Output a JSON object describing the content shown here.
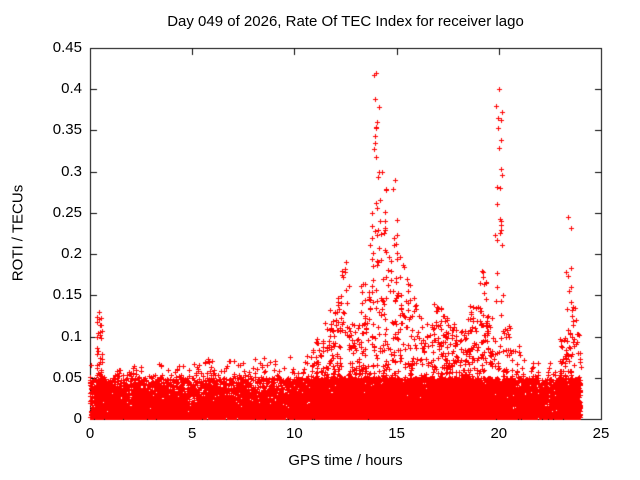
{
  "chart_data": {
    "type": "scatter",
    "title": "Day 049 of 2026, Rate Of TEC Index for receiver lago",
    "xlabel": "GPS time / hours",
    "ylabel": "ROTI / TECUs",
    "xlim": [
      0,
      25
    ],
    "ylim": [
      0,
      0.45
    ],
    "xticks": [
      0,
      5,
      10,
      15,
      20,
      25
    ],
    "xtick_labels": [
      "0",
      "5",
      "10",
      "15",
      "20",
      "25"
    ],
    "yticks": [
      0,
      0.05,
      0.1,
      0.15,
      0.2,
      0.25,
      0.3,
      0.35,
      0.4,
      0.45
    ],
    "ytick_labels": [
      "0",
      "0.05",
      "0.1",
      "0.15",
      "0.2",
      "0.25",
      "0.3",
      "0.35",
      "0.4",
      "0.45"
    ],
    "grid": false,
    "legend": "none",
    "series": [
      {
        "name": "ROTI",
        "marker": "plus",
        "color": "#ff0000"
      }
    ],
    "data_span_hours": [
      0,
      24
    ],
    "baseline_band_max": 0.05,
    "notable_peaks": [
      {
        "t": 14.0,
        "roti": 0.42
      },
      {
        "t": 20.0,
        "roti": 0.4
      },
      {
        "t": 14.3,
        "roti": 0.3
      },
      {
        "t": 14.9,
        "roti": 0.29
      },
      {
        "t": 13.8,
        "roti": 0.25
      },
      {
        "t": 23.4,
        "roti": 0.245
      },
      {
        "t": 12.5,
        "roti": 0.19
      },
      {
        "t": 19.2,
        "roti": 0.18
      },
      {
        "t": 15.5,
        "roti": 0.17
      },
      {
        "t": 0.45,
        "roti": 0.13
      }
    ],
    "envelope": [
      [
        0.0,
        0.3,
        0.065
      ],
      [
        0.3,
        0.6,
        0.13
      ],
      [
        0.6,
        1.0,
        0.055
      ],
      [
        1.0,
        1.5,
        0.06
      ],
      [
        1.5,
        2.0,
        0.06
      ],
      [
        2.0,
        2.5,
        0.065
      ],
      [
        2.5,
        3.0,
        0.06
      ],
      [
        3.0,
        3.5,
        0.07
      ],
      [
        3.5,
        4.0,
        0.06
      ],
      [
        4.0,
        4.5,
        0.065
      ],
      [
        4.5,
        5.0,
        0.06
      ],
      [
        5.0,
        5.5,
        0.07
      ],
      [
        5.5,
        6.0,
        0.075
      ],
      [
        6.0,
        6.5,
        0.065
      ],
      [
        6.5,
        7.0,
        0.08
      ],
      [
        7.0,
        7.5,
        0.07
      ],
      [
        7.5,
        8.0,
        0.065
      ],
      [
        8.0,
        8.5,
        0.075
      ],
      [
        8.5,
        9.0,
        0.07
      ],
      [
        9.0,
        9.5,
        0.065
      ],
      [
        9.5,
        10.0,
        0.08
      ],
      [
        10.0,
        10.5,
        0.07
      ],
      [
        10.5,
        11.0,
        0.085
      ],
      [
        11.0,
        11.5,
        0.1
      ],
      [
        11.5,
        12.0,
        0.135
      ],
      [
        12.0,
        12.3,
        0.15
      ],
      [
        12.3,
        12.7,
        0.19
      ],
      [
        12.7,
        13.2,
        0.12
      ],
      [
        13.2,
        13.6,
        0.17
      ],
      [
        13.6,
        13.9,
        0.25
      ],
      [
        13.9,
        14.2,
        0.42
      ],
      [
        14.2,
        14.5,
        0.3
      ],
      [
        14.5,
        14.8,
        0.22
      ],
      [
        14.8,
        15.1,
        0.29
      ],
      [
        15.1,
        15.4,
        0.2
      ],
      [
        15.4,
        15.7,
        0.17
      ],
      [
        15.7,
        16.0,
        0.15
      ],
      [
        16.0,
        16.4,
        0.13
      ],
      [
        16.4,
        16.8,
        0.12
      ],
      [
        16.8,
        17.2,
        0.14
      ],
      [
        17.2,
        17.6,
        0.13
      ],
      [
        17.6,
        18.0,
        0.12
      ],
      [
        18.0,
        18.5,
        0.11
      ],
      [
        18.5,
        19.0,
        0.14
      ],
      [
        19.0,
        19.4,
        0.18
      ],
      [
        19.4,
        19.8,
        0.13
      ],
      [
        19.8,
        20.2,
        0.4
      ],
      [
        20.2,
        20.6,
        0.12
      ],
      [
        20.6,
        21.0,
        0.09
      ],
      [
        21.0,
        21.5,
        0.08
      ],
      [
        21.5,
        22.0,
        0.07
      ],
      [
        22.0,
        22.5,
        0.065
      ],
      [
        22.5,
        23.0,
        0.07
      ],
      [
        23.0,
        23.3,
        0.1
      ],
      [
        23.3,
        23.6,
        0.245
      ],
      [
        23.6,
        23.8,
        0.16
      ],
      [
        23.8,
        24.0,
        0.12
      ]
    ]
  }
}
